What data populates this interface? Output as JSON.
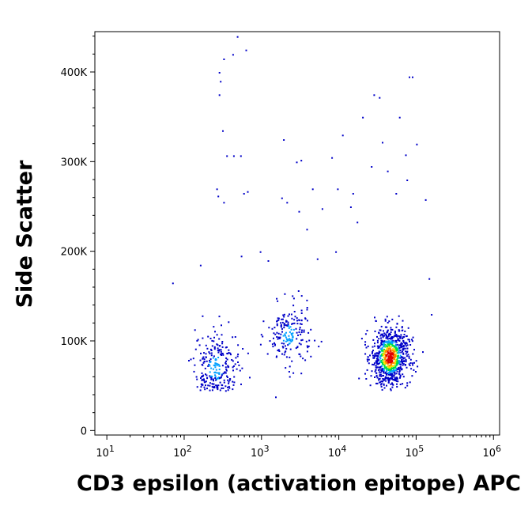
{
  "chart_data": {
    "type": "scatter",
    "title": "",
    "xlabel": "CD3 epsilon (activation epitope) APC",
    "ylabel": "Side Scatter",
    "x_scale": "log",
    "xlim": [
      7,
      1200000
    ],
    "ylim": [
      -5000,
      445000
    ],
    "x_ticks": [
      {
        "value": 10,
        "base": "10",
        "exp": "1"
      },
      {
        "value": 100,
        "base": "10",
        "exp": "2"
      },
      {
        "value": 1000,
        "base": "10",
        "exp": "3"
      },
      {
        "value": 10000,
        "base": "10",
        "exp": "4"
      },
      {
        "value": 100000,
        "base": "10",
        "exp": "5"
      },
      {
        "value": 1000000,
        "base": "10",
        "exp": "6"
      }
    ],
    "y_ticks": [
      {
        "value": 0,
        "label": "0"
      },
      {
        "value": 100000,
        "label": "100K"
      },
      {
        "value": 200000,
        "label": "200K"
      },
      {
        "value": 300000,
        "label": "300K"
      },
      {
        "value": 400000,
        "label": "400K"
      }
    ],
    "density_colors": [
      "#0000c8",
      "#00a0ff",
      "#00e040",
      "#ffe000",
      "#ff8000",
      "#e00000"
    ],
    "populations": [
      {
        "x_log_center": 2.4,
        "x_log_sd": 0.14,
        "y_center": 70000,
        "y_sd": 22000,
        "count": 260,
        "peak_density": 0.45
      },
      {
        "x_log_center": 3.35,
        "x_log_sd": 0.14,
        "y_center": 107000,
        "y_sd": 17000,
        "count": 190,
        "peak_density": 0.45
      },
      {
        "x_log_center": 4.65,
        "x_log_sd": 0.12,
        "y_center": 83000,
        "y_sd": 16000,
        "count": 820,
        "peak_density": 1.0
      }
    ],
    "scattered_points": [
      [
        480,
        440000
      ],
      [
        320,
        415000
      ],
      [
        280,
        400000
      ],
      [
        290,
        390000
      ],
      [
        420,
        420000
      ],
      [
        620,
        425000
      ],
      [
        280,
        375000
      ],
      [
        310,
        335000
      ],
      [
        350,
        307000
      ],
      [
        430,
        307000
      ],
      [
        530,
        307000
      ],
      [
        1900,
        325000
      ],
      [
        2800,
        300000
      ],
      [
        3200,
        302000
      ],
      [
        8000,
        305000
      ],
      [
        9500,
        270000
      ],
      [
        15000,
        265000
      ],
      [
        11000,
        330000
      ],
      [
        20000,
        350000
      ],
      [
        28000,
        375000
      ],
      [
        33000,
        372000
      ],
      [
        80000,
        395000
      ],
      [
        88000,
        395000
      ],
      [
        60000,
        350000
      ],
      [
        72000,
        308000
      ],
      [
        260,
        270000
      ],
      [
        270,
        262000
      ],
      [
        320,
        255000
      ],
      [
        580,
        265000
      ],
      [
        650,
        267000
      ],
      [
        1800,
        260000
      ],
      [
        3000,
        245000
      ],
      [
        4500,
        270000
      ],
      [
        6000,
        248000
      ],
      [
        14000,
        250000
      ],
      [
        26000,
        295000
      ],
      [
        42000,
        290000
      ],
      [
        130000,
        258000
      ],
      [
        1500,
        38000
      ],
      [
        70,
        165000
      ],
      [
        160,
        185000
      ],
      [
        540,
        195000
      ],
      [
        950,
        200000
      ],
      [
        9000,
        200000
      ],
      [
        145000,
        170000
      ],
      [
        155000,
        130000
      ],
      [
        54000,
        265000
      ],
      [
        36000,
        322000
      ],
      [
        17000,
        233000
      ],
      [
        1200,
        190000
      ],
      [
        3800,
        225000
      ],
      [
        5200,
        192000
      ],
      [
        2100,
        255000
      ],
      [
        75000,
        280000
      ],
      [
        100000,
        320000
      ]
    ]
  }
}
